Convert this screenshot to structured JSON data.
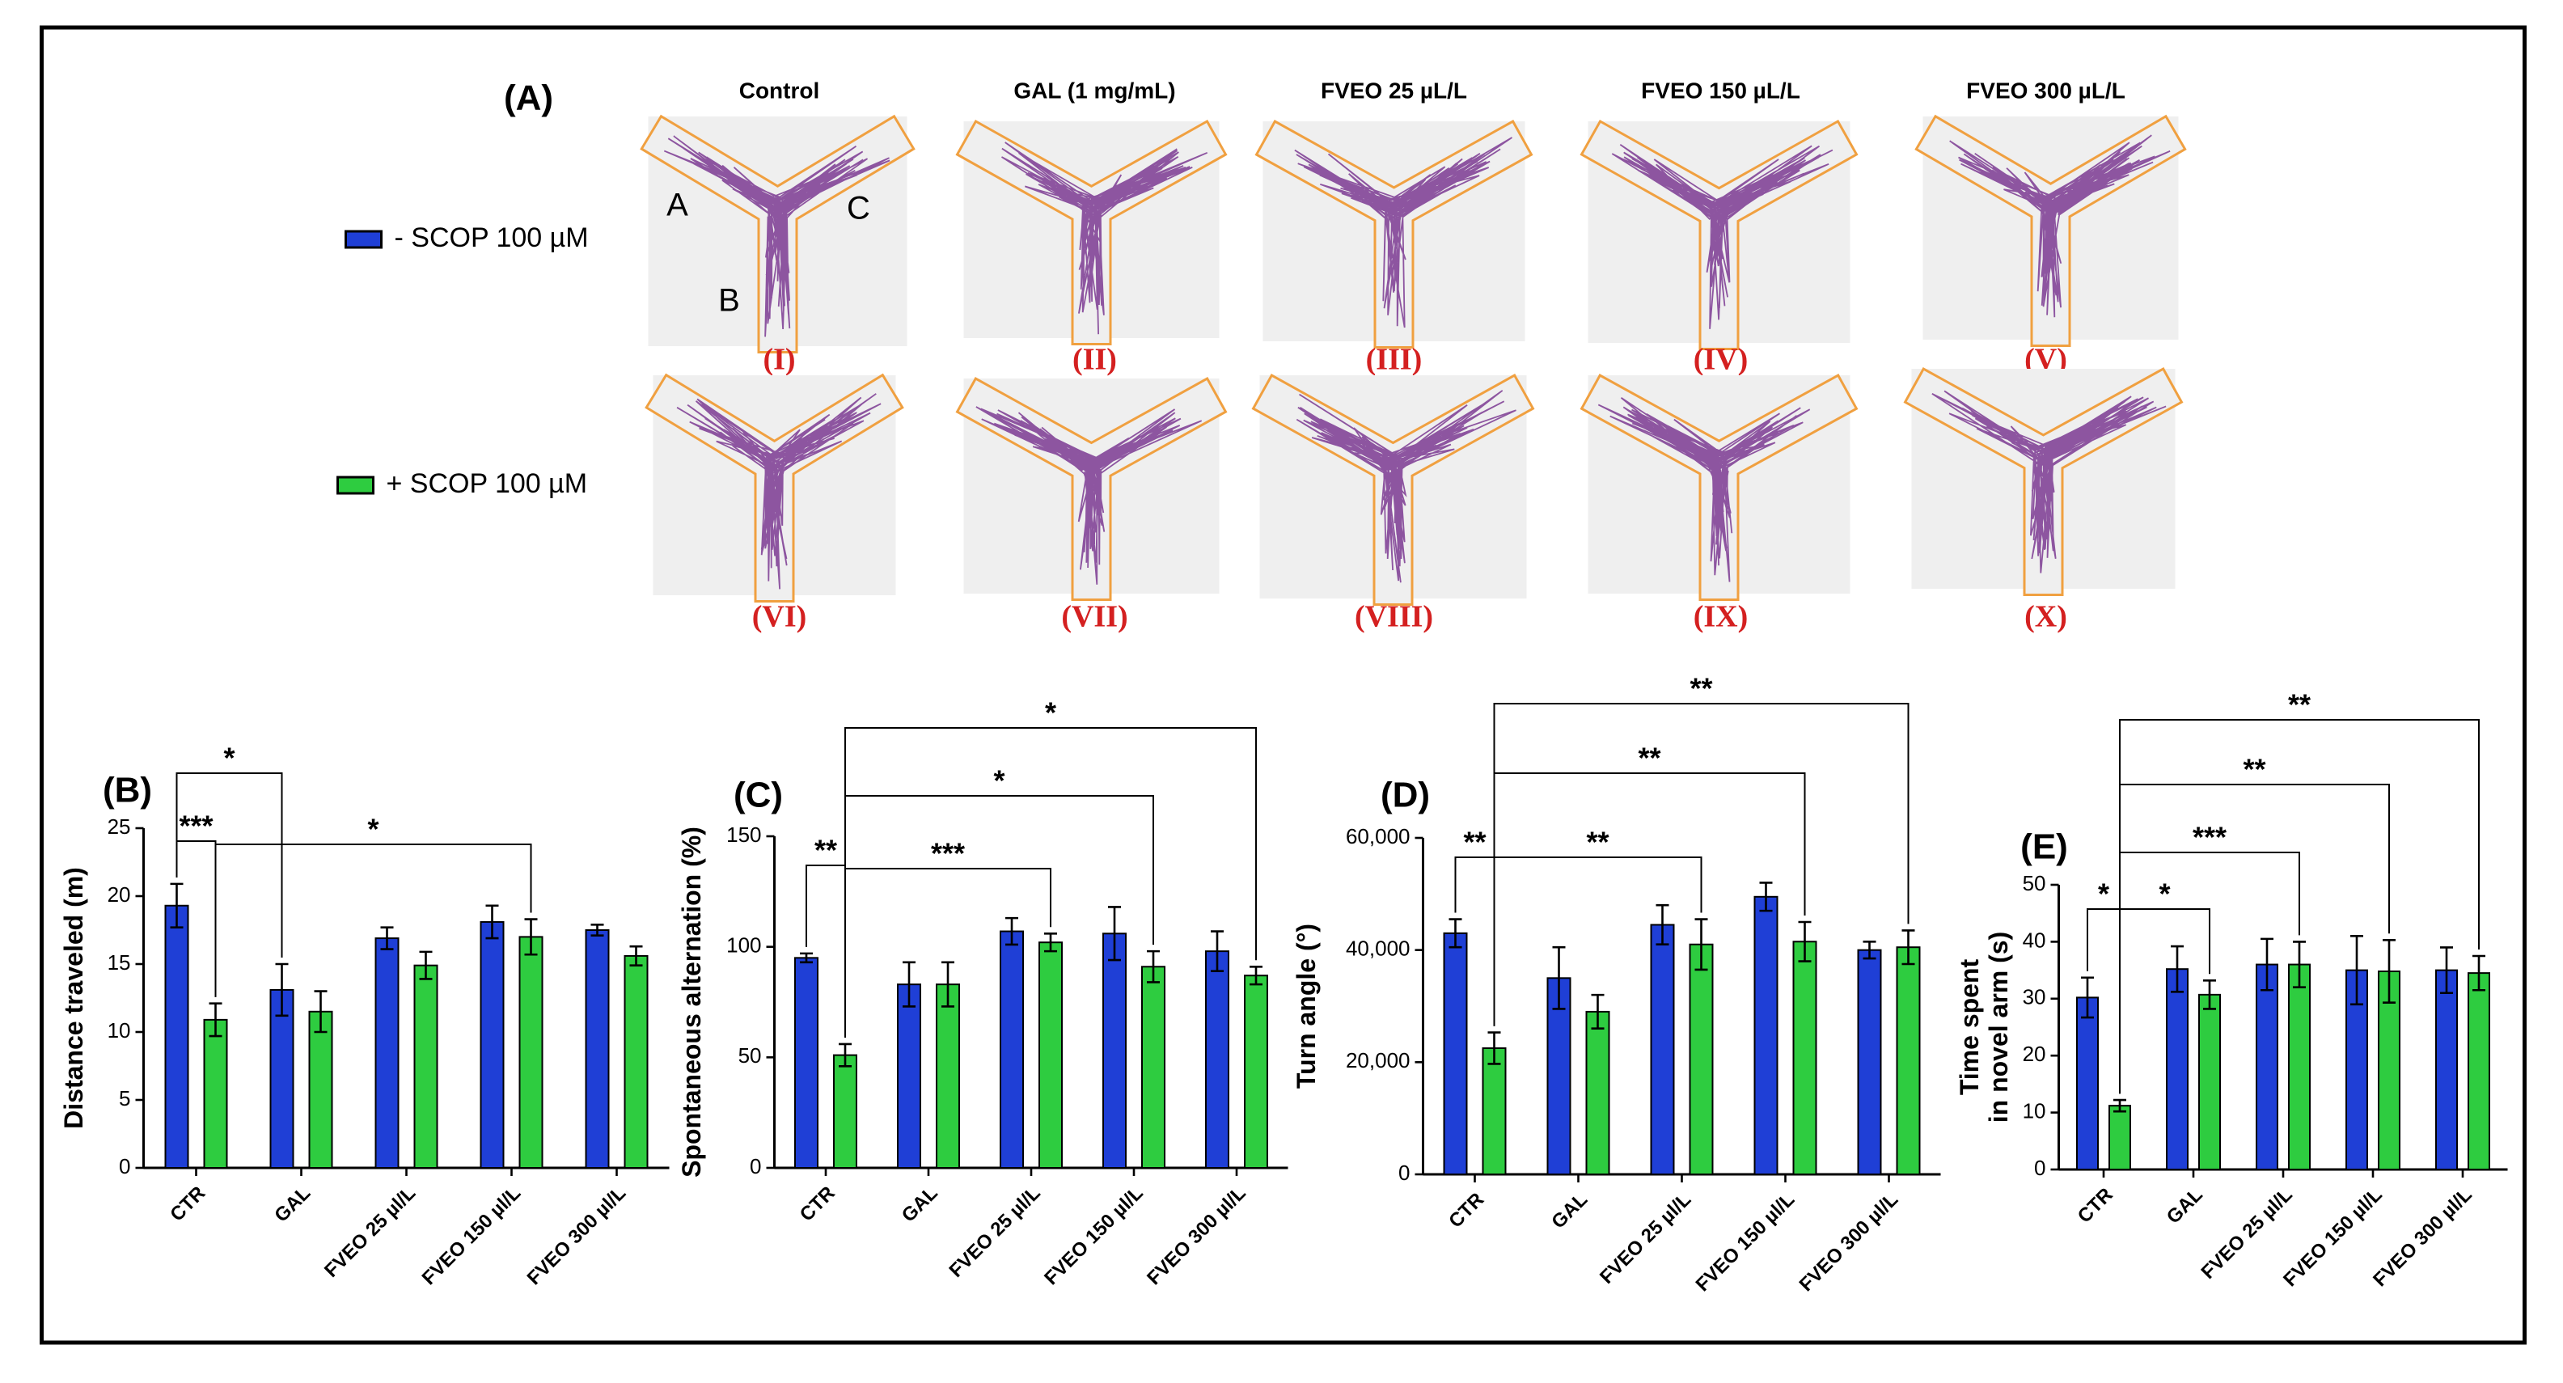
{
  "panel_a": {
    "label": "(A)",
    "columns": [
      "Control",
      "GAL (1 mg/mL)",
      "FVEO 25 µL/L",
      "FVEO 150 µL/L",
      "FVEO 300 µL/L"
    ],
    "images": [
      "(I)",
      "(II)",
      "(III)",
      "(IV)",
      "(V)",
      "(VI)",
      "(VII)",
      "(VIII)",
      "(IX)",
      "(X)"
    ],
    "arms": [
      "A",
      "B",
      "C"
    ]
  },
  "chart_data": [
    {
      "type": "bar",
      "label": "(B)",
      "ylabel": "Distance traveled (m)",
      "categories": [
        "CTR",
        "GAL",
        "FVEO 25 µl/L",
        "FVEO 150 µl/L",
        "FVEO 300 µl/L"
      ],
      "series": [
        {
          "name": "- SCOP 100 µM",
          "color": "#1f3fd6",
          "values": [
            19.3,
            13.1,
            16.9,
            18.1,
            17.5
          ],
          "errors": [
            1.6,
            1.9,
            0.8,
            1.2,
            0.4
          ]
        },
        {
          "name": "+ SCOP 100 µM",
          "color": "#2ecc40",
          "values": [
            10.9,
            11.5,
            14.9,
            17.0,
            15.6
          ],
          "errors": [
            1.2,
            1.5,
            1.0,
            1.3,
            0.7
          ]
        }
      ],
      "ylim": [
        0,
        25
      ],
      "yticks": [
        0,
        5,
        10,
        15,
        20,
        25
      ],
      "annotations": [
        "*",
        "***",
        "*"
      ]
    },
    {
      "type": "bar",
      "label": "(C)",
      "ylabel": "Spontaneous alternation (%)",
      "categories": [
        "CTR",
        "GAL",
        "FVEO 25 µl/L",
        "FVEO 150 µl/L",
        "FVEO 300 µl/L"
      ],
      "series": [
        {
          "color": "#1f3fd6",
          "values": [
            95,
            83,
            107,
            106,
            98
          ],
          "errors": [
            2,
            10,
            6,
            12,
            9
          ]
        },
        {
          "color": "#2ecc40",
          "values": [
            51,
            83,
            102,
            91,
            87
          ],
          "errors": [
            5,
            10,
            4,
            7,
            4
          ]
        }
      ],
      "ylim": [
        0,
        150
      ],
      "yticks": [
        0,
        50,
        100,
        150
      ],
      "annotations": [
        "**",
        "***",
        "*",
        "*"
      ]
    },
    {
      "type": "bar",
      "label": "(D)",
      "ylabel": "Turn angle (°)",
      "categories": [
        "CTR",
        "GAL",
        "FVEO 25 µl/L",
        "FVEO 150 µl/L",
        "FVEO 300 µl/L"
      ],
      "series": [
        {
          "color": "#1f3fd6",
          "values": [
            43000,
            35000,
            44500,
            49500,
            40000
          ],
          "errors": [
            2500,
            5500,
            3500,
            2500,
            1500
          ]
        },
        {
          "color": "#2ecc40",
          "values": [
            22500,
            29000,
            41000,
            41500,
            40500
          ],
          "errors": [
            2800,
            3000,
            4500,
            3500,
            3000
          ]
        }
      ],
      "ylim": [
        0,
        60000
      ],
      "yticks": [
        0,
        {
          "value": 20000,
          "label": "20,000"
        },
        {
          "value": 40000,
          "label": "40,000"
        },
        {
          "value": 60000,
          "label": "60,000"
        }
      ],
      "annotations": [
        "**",
        "**",
        "**",
        "**"
      ]
    },
    {
      "type": "bar",
      "label": "(E)",
      "ylabel": [
        "Time spent",
        "in novel arm (s)"
      ],
      "categories": [
        "CTR",
        "GAL",
        "FVEO 25 µl/L",
        "FVEO 150 µl/L",
        "FVEO 300 µl/L"
      ],
      "series": [
        {
          "color": "#1f3fd6",
          "values": [
            30.2,
            35.2,
            36,
            35,
            35
          ],
          "errors": [
            3.5,
            4,
            4.5,
            6,
            4
          ]
        },
        {
          "color": "#2ecc40",
          "values": [
            11.2,
            30.7,
            36,
            34.8,
            34.5
          ],
          "errors": [
            1,
            2.5,
            4,
            5.5,
            3
          ]
        }
      ],
      "ylim": [
        0,
        50
      ],
      "yticks": [
        0,
        10,
        20,
        30,
        40,
        50
      ],
      "annotations": [
        "*",
        "*",
        "***",
        "**",
        "**"
      ]
    }
  ]
}
